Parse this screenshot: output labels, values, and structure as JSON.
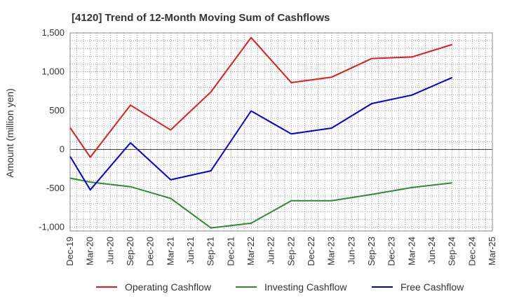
{
  "chart_data": {
    "type": "line",
    "title": "[4120]  Trend of 12-Month Moving Sum of Cashflows",
    "xlabel": "",
    "ylabel": "Amount (million yen)",
    "ylim": [
      -1050,
      1500
    ],
    "yticks": [
      -1000,
      -500,
      0,
      500,
      1000,
      1500
    ],
    "ytick_labels": [
      "-1,000",
      "-500",
      "0",
      "500",
      "1,000",
      "1,500"
    ],
    "categories": [
      "Dec-19",
      "Mar-20",
      "Jun-20",
      "Sep-20",
      "Dec-20",
      "Mar-21",
      "Jun-21",
      "Sep-21",
      "Dec-21",
      "Mar-22",
      "Jun-22",
      "Sep-22",
      "Dec-22",
      "Mar-23",
      "Jun-23",
      "Sep-23",
      "Dec-23",
      "Mar-24",
      "Jun-24",
      "Sep-24",
      "Dec-24",
      "Mar-25"
    ],
    "grid": true,
    "legend_position": "bottom",
    "series": [
      {
        "name": "Operating Cashflow",
        "color": "#e41a1c",
        "values": [
          280,
          -100,
          null,
          570,
          null,
          250,
          null,
          740,
          null,
          1440,
          null,
          860,
          null,
          930,
          null,
          1170,
          null,
          1190,
          null,
          1350,
          null,
          null
        ]
      },
      {
        "name": "Investing Cashflow",
        "color": "#2e8b2e",
        "values": [
          -370,
          -420,
          null,
          -480,
          null,
          -630,
          null,
          -1010,
          null,
          -950,
          null,
          -660,
          null,
          -660,
          null,
          -580,
          null,
          -490,
          null,
          -430,
          null,
          null
        ]
      },
      {
        "name": "Free Cashflow",
        "color": "#0000dd",
        "values": [
          -90,
          -520,
          null,
          85,
          null,
          -390,
          null,
          -275,
          null,
          495,
          null,
          200,
          null,
          275,
          null,
          590,
          null,
          700,
          null,
          925,
          null,
          null
        ]
      }
    ]
  }
}
